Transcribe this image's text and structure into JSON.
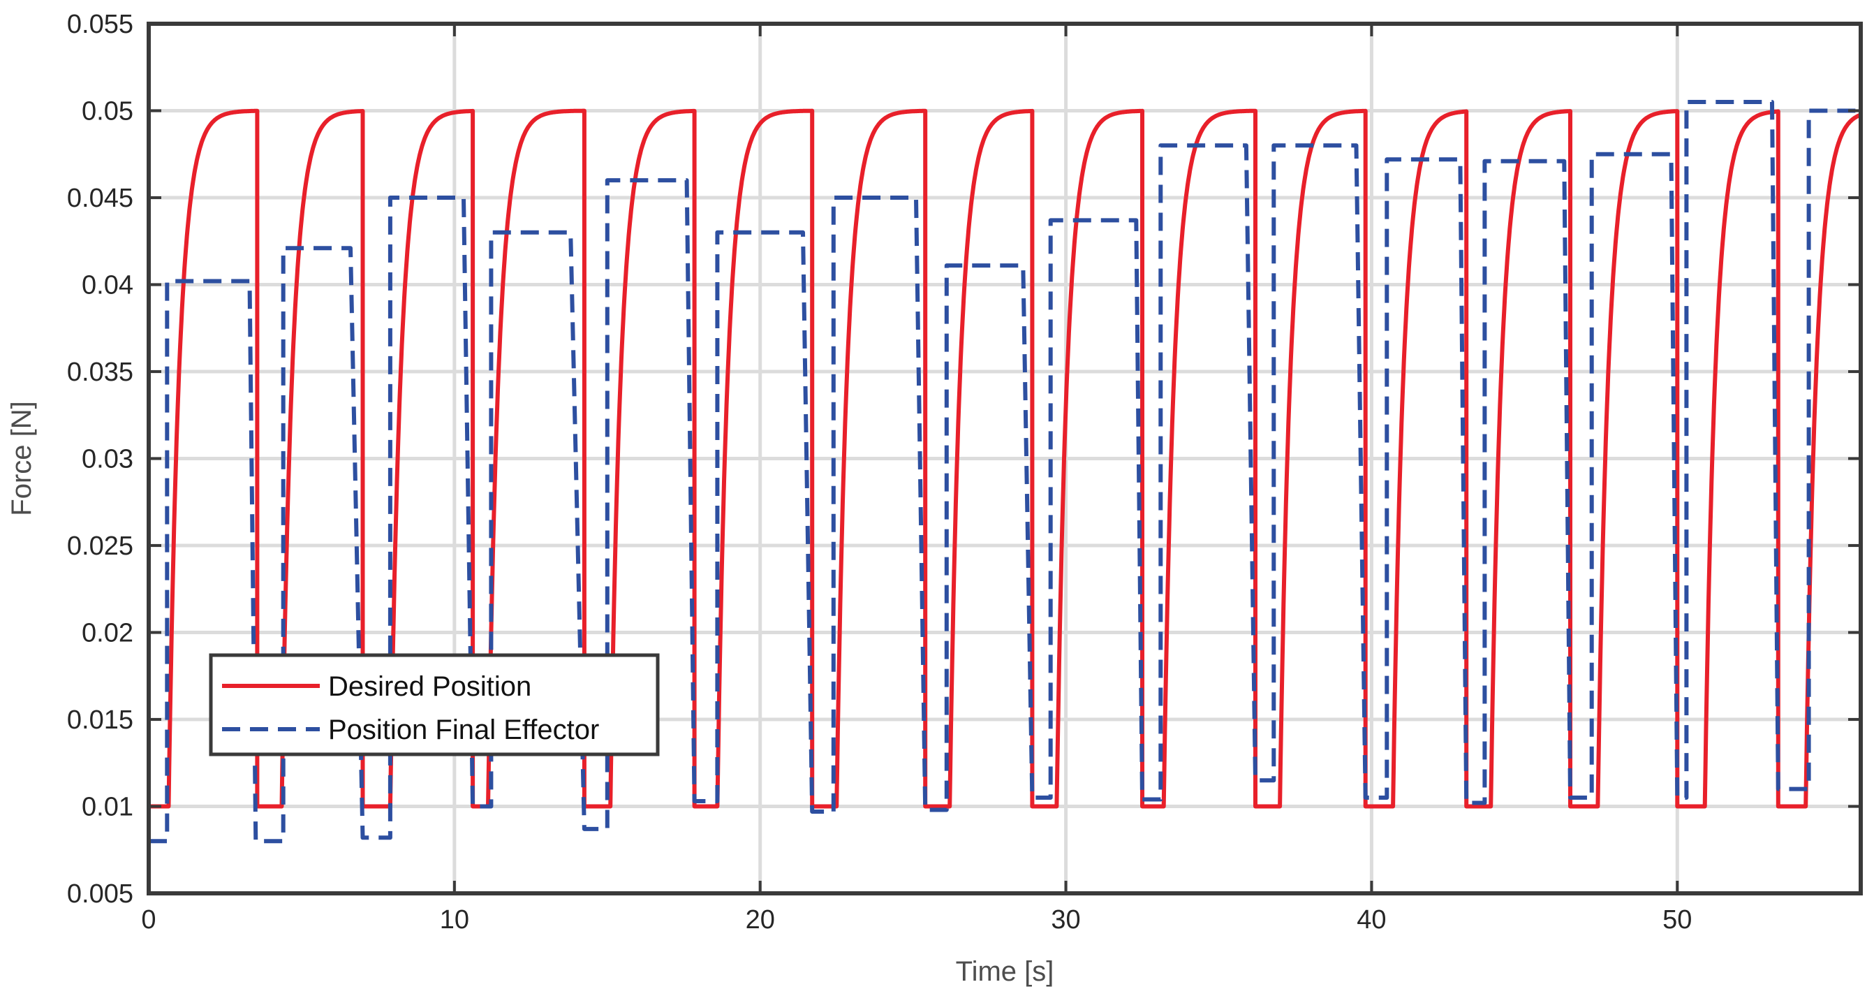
{
  "chart_data": {
    "type": "line",
    "title": "",
    "xlabel": "Time [s]",
    "ylabel": "Force [N]",
    "xlim": [
      0,
      56
    ],
    "ylim": [
      0.005,
      0.055
    ],
    "xticks": [
      0,
      10,
      20,
      30,
      40,
      50
    ],
    "xtick_labels": [
      "0",
      "10",
      "20",
      "30",
      "40",
      "50"
    ],
    "yticks": [
      0.005,
      0.01,
      0.015,
      0.02,
      0.025,
      0.03,
      0.035,
      0.04,
      0.045,
      0.05,
      0.055
    ],
    "ytick_labels": [
      "0.005",
      "0.01",
      "0.015",
      "0.02",
      "0.025",
      "0.03",
      "0.035",
      "0.04",
      "0.045",
      "0.05",
      "0.055"
    ],
    "grid": true,
    "legend_position": "lower-left",
    "series": [
      {
        "name": "Desired Position",
        "color": "#e8202a",
        "style": "solid",
        "low": 0.01,
        "high": 0.05,
        "rise_starts": [
          0.65,
          4.35,
          7.9,
          11.1,
          15.1,
          18.6,
          22.5,
          26.2,
          29.7,
          33.2,
          37.0,
          40.7,
          43.9,
          47.4,
          50.9,
          54.2
        ],
        "fall_times": [
          3.55,
          7.0,
          10.6,
          14.25,
          17.85,
          21.7,
          25.4,
          28.9,
          32.5,
          36.2,
          39.8,
          43.1,
          46.5,
          50.0,
          53.3
        ]
      },
      {
        "name": "Position Final Effector",
        "color": "#2d4fa0",
        "style": "dashed",
        "plateaus": [
          {
            "start": 0.0,
            "end": 0.6,
            "value": 0.008
          },
          {
            "start": 0.6,
            "end": 3.3,
            "value": 0.0402
          },
          {
            "start": 3.5,
            "end": 4.4,
            "value": 0.008
          },
          {
            "start": 4.4,
            "end": 6.6,
            "value": 0.0421
          },
          {
            "start": 7.0,
            "end": 7.9,
            "value": 0.0082
          },
          {
            "start": 7.9,
            "end": 10.3,
            "value": 0.045
          },
          {
            "start": 10.6,
            "end": 11.2,
            "value": 0.01
          },
          {
            "start": 11.2,
            "end": 13.8,
            "value": 0.043
          },
          {
            "start": 14.25,
            "end": 15.0,
            "value": 0.0087
          },
          {
            "start": 15.0,
            "end": 17.6,
            "value": 0.046
          },
          {
            "start": 17.85,
            "end": 18.6,
            "value": 0.0103
          },
          {
            "start": 18.6,
            "end": 21.4,
            "value": 0.043
          },
          {
            "start": 21.7,
            "end": 22.4,
            "value": 0.0097
          },
          {
            "start": 22.4,
            "end": 25.1,
            "value": 0.045
          },
          {
            "start": 25.4,
            "end": 26.1,
            "value": 0.0098
          },
          {
            "start": 26.1,
            "end": 28.6,
            "value": 0.0411
          },
          {
            "start": 28.9,
            "end": 29.5,
            "value": 0.0105
          },
          {
            "start": 29.5,
            "end": 32.3,
            "value": 0.0437
          },
          {
            "start": 32.5,
            "end": 33.1,
            "value": 0.0104
          },
          {
            "start": 33.1,
            "end": 35.9,
            "value": 0.048
          },
          {
            "start": 36.2,
            "end": 36.8,
            "value": 0.0115
          },
          {
            "start": 36.8,
            "end": 39.5,
            "value": 0.048
          },
          {
            "start": 39.8,
            "end": 40.5,
            "value": 0.0105
          },
          {
            "start": 40.5,
            "end": 42.9,
            "value": 0.0472
          },
          {
            "start": 43.1,
            "end": 43.7,
            "value": 0.0102
          },
          {
            "start": 43.7,
            "end": 46.3,
            "value": 0.0471
          },
          {
            "start": 46.5,
            "end": 47.2,
            "value": 0.0105
          },
          {
            "start": 47.2,
            "end": 49.8,
            "value": 0.0475
          },
          {
            "start": 50.0,
            "end": 50.3,
            "value": 0.0105
          },
          {
            "start": 50.3,
            "end": 53.1,
            "value": 0.0505
          },
          {
            "start": 53.3,
            "end": 54.3,
            "value": 0.011
          },
          {
            "start": 54.3,
            "end": 56.0,
            "value": 0.05
          }
        ]
      }
    ]
  }
}
